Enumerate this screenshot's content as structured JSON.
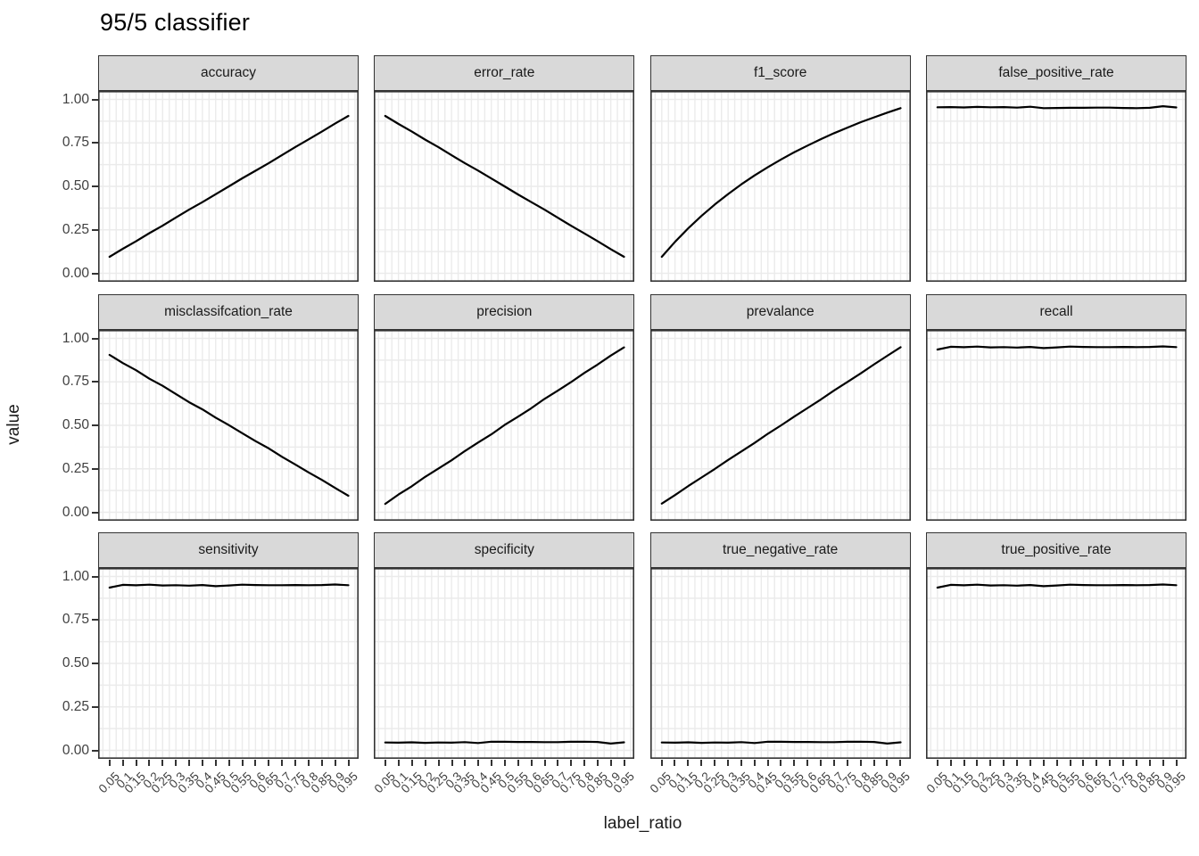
{
  "title": "95/5 classifier",
  "x_axis": {
    "label": "label_ratio",
    "ticks": [
      "0.05",
      "0.1",
      "0.15",
      "0.2",
      "0.25",
      "0.3",
      "0.35",
      "0.4",
      "0.45",
      "0.5",
      "0.55",
      "0.6",
      "0.65",
      "0.7",
      "0.75",
      "0.8",
      "0.85",
      "0.9",
      "0.95"
    ]
  },
  "y_axis": {
    "label": "value",
    "ticks": [
      "1.00",
      "0.75",
      "0.50",
      "0.25",
      "0.00"
    ],
    "tick_values": [
      1.0,
      0.75,
      0.5,
      0.25,
      0.0
    ]
  },
  "colors": {
    "strip_bg": "#d9d9d9",
    "panel_border": "#333333",
    "grid": "#ebebeb",
    "line": "#000000",
    "axis_text": "#404040",
    "title_text": "#000000"
  },
  "chart_data": {
    "type": "line",
    "title": "95/5 classifier",
    "xlabel": "label_ratio",
    "ylabel": "value",
    "ylim": [
      0,
      1
    ],
    "grid": true,
    "facet_layout": {
      "rows": 3,
      "cols": 4
    },
    "x": [
      0.05,
      0.1,
      0.15,
      0.2,
      0.25,
      0.3,
      0.35,
      0.4,
      0.45,
      0.5,
      0.55,
      0.6,
      0.65,
      0.7,
      0.75,
      0.8,
      0.85,
      0.9,
      0.95
    ],
    "facets": [
      {
        "name": "accuracy",
        "values": [
          0.095,
          0.141,
          0.184,
          0.231,
          0.274,
          0.321,
          0.366,
          0.409,
          0.455,
          0.5,
          0.546,
          0.59,
          0.634,
          0.68,
          0.726,
          0.77,
          0.815,
          0.861,
          0.905
        ]
      },
      {
        "name": "error_rate",
        "values": [
          0.905,
          0.859,
          0.816,
          0.769,
          0.726,
          0.679,
          0.634,
          0.591,
          0.545,
          0.5,
          0.454,
          0.41,
          0.366,
          0.32,
          0.274,
          0.23,
          0.185,
          0.139,
          0.095
        ]
      },
      {
        "name": "f1_score",
        "values": [
          0.095,
          0.181,
          0.259,
          0.33,
          0.396,
          0.456,
          0.512,
          0.563,
          0.611,
          0.655,
          0.697,
          0.735,
          0.772,
          0.806,
          0.838,
          0.869,
          0.897,
          0.924,
          0.95
        ]
      },
      {
        "name": "false_positive_rate",
        "values": [
          0.955,
          0.956,
          0.954,
          0.957,
          0.955,
          0.956,
          0.953,
          0.958,
          0.95,
          0.951,
          0.952,
          0.952,
          0.953,
          0.953,
          0.951,
          0.95,
          0.952,
          0.961,
          0.954
        ]
      },
      {
        "name": "misclassifcation_rate",
        "values": [
          0.905,
          0.858,
          0.817,
          0.768,
          0.727,
          0.68,
          0.633,
          0.592,
          0.544,
          0.501,
          0.455,
          0.409,
          0.367,
          0.319,
          0.275,
          0.229,
          0.186,
          0.14,
          0.095
        ]
      },
      {
        "name": "precision",
        "values": [
          0.048,
          0.102,
          0.149,
          0.203,
          0.251,
          0.299,
          0.352,
          0.401,
          0.448,
          0.502,
          0.549,
          0.598,
          0.652,
          0.699,
          0.748,
          0.801,
          0.849,
          0.901,
          0.948
        ]
      },
      {
        "name": "prevalance",
        "values": [
          0.05,
          0.099,
          0.151,
          0.2,
          0.249,
          0.301,
          0.35,
          0.399,
          0.452,
          0.5,
          0.551,
          0.6,
          0.649,
          0.701,
          0.75,
          0.799,
          0.851,
          0.9,
          0.949
        ]
      },
      {
        "name": "recall",
        "values": [
          0.936,
          0.952,
          0.949,
          0.953,
          0.948,
          0.95,
          0.947,
          0.951,
          0.944,
          0.948,
          0.953,
          0.951,
          0.95,
          0.95,
          0.951,
          0.95,
          0.951,
          0.954,
          0.95
        ]
      },
      {
        "name": "sensitivity",
        "values": [
          0.936,
          0.952,
          0.949,
          0.953,
          0.948,
          0.95,
          0.947,
          0.951,
          0.944,
          0.948,
          0.953,
          0.951,
          0.95,
          0.95,
          0.951,
          0.95,
          0.951,
          0.954,
          0.95
        ]
      },
      {
        "name": "specificity",
        "values": [
          0.045,
          0.044,
          0.046,
          0.043,
          0.045,
          0.044,
          0.047,
          0.042,
          0.05,
          0.049,
          0.048,
          0.048,
          0.047,
          0.047,
          0.049,
          0.05,
          0.048,
          0.039,
          0.046
        ]
      },
      {
        "name": "true_negative_rate",
        "values": [
          0.045,
          0.044,
          0.046,
          0.043,
          0.045,
          0.044,
          0.047,
          0.042,
          0.05,
          0.049,
          0.048,
          0.048,
          0.047,
          0.047,
          0.049,
          0.05,
          0.048,
          0.039,
          0.046
        ]
      },
      {
        "name": "true_positive_rate",
        "values": [
          0.936,
          0.952,
          0.949,
          0.953,
          0.948,
          0.95,
          0.947,
          0.951,
          0.944,
          0.948,
          0.953,
          0.951,
          0.95,
          0.95,
          0.951,
          0.95,
          0.951,
          0.954,
          0.95
        ]
      }
    ]
  }
}
